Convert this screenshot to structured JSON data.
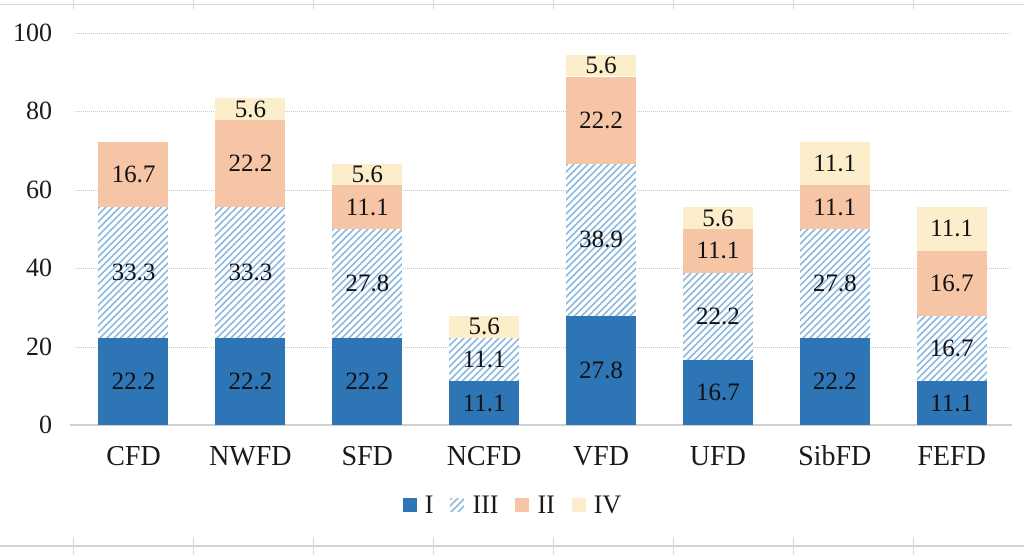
{
  "chart_data": {
    "type": "bar",
    "subtype": "stacked-vertical",
    "title": "",
    "xlabel": "",
    "ylabel": "",
    "categories": [
      "CFD",
      "NWFD",
      "SFD",
      "NCFD",
      "VFD",
      "UFD",
      "SibFD",
      "FEFD"
    ],
    "series": [
      {
        "name": "I",
        "pattern": "solid",
        "color": "#2E75B6",
        "values": [
          22.2,
          22.2,
          22.2,
          11.1,
          27.8,
          16.7,
          22.2,
          11.1
        ]
      },
      {
        "name": "III",
        "pattern": "diagonal-stripes",
        "color": "#8FBADF",
        "values": [
          33.3,
          33.3,
          27.8,
          11.1,
          38.9,
          22.2,
          27.8,
          16.7
        ]
      },
      {
        "name": "II",
        "pattern": "solid",
        "color": "#F6C5A5",
        "values": [
          16.7,
          22.2,
          11.1,
          0,
          22.2,
          11.1,
          11.1,
          16.7
        ]
      },
      {
        "name": "IV",
        "pattern": "solid",
        "color": "#FCEECB",
        "values": [
          0,
          5.6,
          5.6,
          5.6,
          5.6,
          5.6,
          11.1,
          11.1
        ]
      }
    ],
    "totals": [
      72.2,
      83.3,
      66.7,
      27.8,
      94.5,
      55.6,
      72.2,
      55.6
    ],
    "yticks": [
      0,
      20,
      40,
      60,
      80,
      100
    ],
    "ylim": [
      0,
      100
    ],
    "grid": "horizontal-dotted",
    "legend_position": "bottom",
    "data_labels": "inside-center",
    "axis_line_color": "#D0D0D0",
    "gridline_color": "#C9C9C9"
  }
}
